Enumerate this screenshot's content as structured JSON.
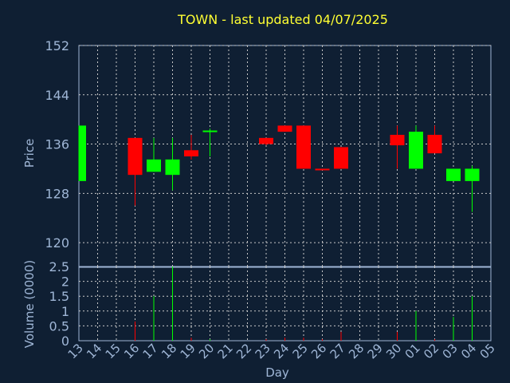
{
  "chart_data": {
    "type": "candlestick",
    "title": "TOWN - last updated 04/07/2025",
    "xlabel": "Day",
    "ylabel": "Price",
    "volume_label": "Volume (0000)",
    "grid": true,
    "colors": {
      "up": "#00ff00",
      "down": "#ff0000",
      "background": "#0f1f33",
      "text": "#9fb6d6",
      "title": "#ffff33"
    },
    "price_ylim": [
      116,
      152
    ],
    "price_ticks": [
      120,
      128,
      136,
      144,
      152
    ],
    "volume_ylim": [
      0,
      2.5
    ],
    "volume_ticks": [
      0,
      0.5,
      1,
      1.5,
      2,
      2.5
    ],
    "volume_tick_labels": [
      "0",
      "0.5",
      "1",
      "1.5",
      "2",
      "2.5"
    ],
    "categories": [
      "13",
      "14",
      "15",
      "16",
      "17",
      "18",
      "19",
      "20",
      "21",
      "22",
      "23",
      "24",
      "25",
      "26",
      "27",
      "28",
      "29",
      "30",
      "01",
      "02",
      "03",
      "04",
      "05"
    ],
    "candles": [
      {
        "day": "13",
        "open": 130,
        "high": 139,
        "low": 130,
        "close": 139,
        "volume": 0
      },
      {
        "day": "16",
        "open": 137,
        "high": 137,
        "low": 126,
        "close": 131,
        "volume": 0.65
      },
      {
        "day": "17",
        "open": 131.5,
        "high": 137,
        "low": 131.5,
        "close": 133.5,
        "volume": 1.5
      },
      {
        "day": "18",
        "open": 131,
        "high": 137,
        "low": 128.5,
        "close": 133.5,
        "volume": 2.5
      },
      {
        "day": "19",
        "open": 135,
        "high": 137.5,
        "low": 133.5,
        "close": 134,
        "volume": 0.1
      },
      {
        "day": "20",
        "open": 138,
        "high": 138.5,
        "low": 134,
        "close": 138.2,
        "volume": 0.05
      },
      {
        "day": "23",
        "open": 137,
        "high": 137,
        "low": 135.8,
        "close": 136,
        "volume": 0.05
      },
      {
        "day": "24",
        "open": 139,
        "high": 139,
        "low": 138,
        "close": 138,
        "volume": 0.1
      },
      {
        "day": "25",
        "open": 139,
        "high": 139,
        "low": 132,
        "close": 132,
        "volume": 0.1
      },
      {
        "day": "26",
        "open": 132,
        "high": 132,
        "low": 131.8,
        "close": 131.8,
        "volume": 0.05
      },
      {
        "day": "27",
        "open": 135.5,
        "high": 135.5,
        "low": 132,
        "close": 132,
        "volume": 0.3
      },
      {
        "day": "30",
        "open": 137.5,
        "high": 139,
        "low": 132,
        "close": 135.8,
        "volume": 0.3
      },
      {
        "day": "01",
        "open": 132,
        "high": 139,
        "low": 132,
        "close": 138,
        "volume": 1.0
      },
      {
        "day": "02",
        "open": 137.5,
        "high": 139,
        "low": 134.5,
        "close": 134.5,
        "volume": 0.05
      },
      {
        "day": "03",
        "open": 130,
        "high": 132,
        "low": 130,
        "close": 132,
        "volume": 0.8
      },
      {
        "day": "04",
        "open": 130,
        "high": 132.5,
        "low": 125,
        "close": 132,
        "volume": 1.5
      }
    ]
  }
}
